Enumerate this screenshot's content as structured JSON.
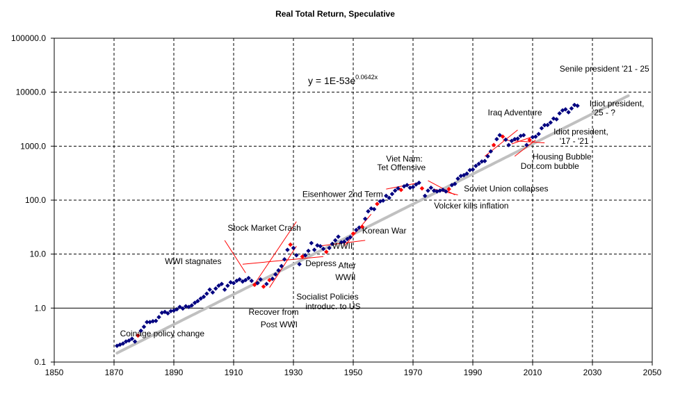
{
  "chart_data": {
    "type": "scatter",
    "title": "Real Total Return,  Speculative",
    "xlabel": "",
    "ylabel": "",
    "y_scale": "log",
    "xlim": [
      1850,
      2050
    ],
    "ylim": [
      0.1,
      100000
    ],
    "x_ticks": [
      "1850",
      "1870",
      "1890",
      "1910",
      "1930",
      "1950",
      "1970",
      "1990",
      "2010",
      "2030",
      "2050"
    ],
    "y_ticks": [
      "100000.0",
      "10000.0",
      "1000.0",
      "100.0",
      "10.0",
      "1.0",
      "0.1"
    ],
    "trendline": {
      "equation_prefix": "y = 1E-53e",
      "equation_exponent": "0.0642x",
      "coef": 1e-53,
      "rate": 0.0642,
      "x_range": [
        1871,
        2042
      ],
      "color": "#c0c0c0"
    },
    "series": [
      {
        "name": "Real Total Return",
        "marker": "diamond",
        "color": "#000080",
        "x": [
          1871,
          1872,
          1873,
          1874,
          1875,
          1876,
          1877,
          1878,
          1879,
          1880,
          1881,
          1882,
          1883,
          1884,
          1885,
          1886,
          1887,
          1888,
          1889,
          1890,
          1891,
          1892,
          1893,
          1894,
          1895,
          1896,
          1897,
          1898,
          1899,
          1900,
          1901,
          1902,
          1903,
          1904,
          1905,
          1906,
          1907,
          1908,
          1909,
          1910,
          1911,
          1912,
          1913,
          1914,
          1915,
          1916,
          1917,
          1918,
          1919,
          1920,
          1921,
          1922,
          1923,
          1924,
          1925,
          1926,
          1927,
          1928,
          1929,
          1930,
          1931,
          1932,
          1933,
          1934,
          1935,
          1936,
          1937,
          1938,
          1939,
          1940,
          1941,
          1942,
          1943,
          1944,
          1945,
          1946,
          1947,
          1948,
          1949,
          1950,
          1951,
          1952,
          1953,
          1954,
          1955,
          1956,
          1957,
          1958,
          1959,
          1960,
          1961,
          1962,
          1963,
          1964,
          1965,
          1966,
          1967,
          1968,
          1969,
          1970,
          1971,
          1972,
          1973,
          1974,
          1975,
          1976,
          1977,
          1978,
          1979,
          1980,
          1981,
          1982,
          1983,
          1984,
          1985,
          1986,
          1987,
          1988,
          1989,
          1990,
          1991,
          1992,
          1993,
          1994,
          1995,
          1996,
          1997,
          1998,
          1999,
          2000,
          2001,
          2002,
          2003,
          2004,
          2005,
          2006,
          2007,
          2008,
          2009,
          2010,
          2011,
          2012,
          2013,
          2014,
          2015,
          2016,
          2017,
          2018,
          2019,
          2020,
          2021,
          2022,
          2023,
          2024,
          2025
        ],
        "values": [
          0.2,
          0.21,
          0.22,
          0.24,
          0.25,
          0.27,
          0.24,
          0.31,
          0.38,
          0.45,
          0.55,
          0.55,
          0.57,
          0.58,
          0.68,
          0.82,
          0.85,
          0.8,
          0.88,
          0.9,
          0.95,
          1.05,
          0.98,
          1.08,
          1.05,
          1.12,
          1.25,
          1.35,
          1.5,
          1.62,
          1.85,
          2.2,
          1.95,
          2.3,
          2.6,
          2.8,
          2.2,
          2.6,
          3.0,
          2.9,
          3.2,
          3.4,
          3.1,
          3.3,
          3.6,
          3.2,
          2.7,
          2.9,
          3.4,
          2.5,
          2.8,
          3.3,
          3.5,
          4.2,
          5.0,
          6.0,
          8.0,
          12.0,
          15.0,
          13.0,
          9.5,
          6.5,
          9.0,
          9.5,
          11.5,
          16.0,
          12.0,
          14.5,
          14.0,
          12.5,
          11.0,
          13.0,
          15.5,
          18.0,
          21.0,
          16.5,
          17.0,
          19.0,
          20.5,
          24.0,
          28.0,
          31.0,
          32.0,
          45.0,
          62.0,
          70.0,
          68.0,
          85.0,
          95.0,
          98.0,
          120.0,
          110.0,
          130.0,
          150.0,
          165.0,
          155.0,
          180.0,
          190.0,
          170.0,
          175.0,
          195.0,
          210.0,
          165.0,
          120.0,
          150.0,
          170.0,
          150.0,
          145.0,
          150.0,
          155.0,
          145.0,
          160.0,
          190.0,
          200.0,
          250.0,
          280.0,
          290.0,
          310.0,
          360.0,
          370.0,
          430.0,
          470.0,
          520.0,
          530.0,
          650.0,
          800.0,
          1050.0,
          1350.0,
          1600.0,
          1500.0,
          1320.0,
          1050.0,
          1250.0,
          1350.0,
          1380.0,
          1550.0,
          1600.0,
          1050.0,
          1300.0,
          1470.0,
          1500.0,
          1680.0,
          2150.0,
          2450.0,
          2470.0,
          2740.0,
          3250.0,
          3150.0,
          4050.0,
          4600.0,
          4800.0,
          4250.0,
          5000.0,
          5800.0,
          5600.0
        ],
        "highlight_color": "#ff0000",
        "highlight_x": [
          1878,
          1917,
          1920,
          1922,
          1929,
          1933,
          1941,
          1950,
          1953,
          1958,
          1966,
          1973,
          1982,
          1997,
          2000,
          2009
        ]
      }
    ],
    "annotations": [
      {
        "text": "Coinage  policy change",
        "x": 1872,
        "y": 0.3
      },
      {
        "text": "WWI stagnates",
        "x": 1887,
        "y": 6.5
      },
      {
        "text": "Stock Market Crash",
        "x": 1908,
        "y": 27
      },
      {
        "text": "Recover  from",
        "x": 1915,
        "y": 0.75
      },
      {
        "text": "Post WWI",
        "x": 1919,
        "y": 0.44
      },
      {
        "text": "Depress",
        "x": 1934,
        "y": 6.0
      },
      {
        "text": "After",
        "x": 1945,
        "y": 5.5
      },
      {
        "text": "WWII",
        "x": 1944,
        "y": 3.3
      },
      {
        "text": "WWII",
        "x": 1943,
        "y": 12.5
      },
      {
        "text": "Socialist Policies",
        "x": 1931,
        "y": 1.45
      },
      {
        "text": "introduc. to US",
        "x": 1934,
        "y": 0.95
      },
      {
        "text": "Korean  War",
        "x": 1953,
        "y": 24
      },
      {
        "text": "Eisenhower 2nd Term",
        "x": 1933,
        "y": 115
      },
      {
        "text": "Viet Nam:",
        "x": 1961,
        "y": 520
      },
      {
        "text": "Tet Offensive",
        "x": 1958,
        "y": 360
      },
      {
        "text": "Volcker kills inflation",
        "x": 1977,
        "y": 70
      },
      {
        "text": "Soviet Union collapses",
        "x": 1987,
        "y": 145
      },
      {
        "text": "Iraq  Adventure",
        "x": 1995,
        "y": 3700
      },
      {
        "text": "Housing  Bubble",
        "x": 2010,
        "y": 570
      },
      {
        "text": "Dot.com  bubble",
        "x": 2006,
        "y": 380
      },
      {
        "text": "Idiot president,",
        "x": 2017,
        "y": 1650
      },
      {
        "text": "'17 - '21",
        "x": 2019,
        "y": 1100
      },
      {
        "text": "Idiot president,",
        "x": 2029,
        "y": 5500
      },
      {
        "text": "'25 - ?",
        "x": 2030,
        "y": 3700
      },
      {
        "text": "Senile president '21 - 25",
        "x": 2019,
        "y": 24000
      }
    ],
    "red_segments": [
      {
        "x1": 1907,
        "y1": 18,
        "x2": 1914,
        "y2": 4.5
      },
      {
        "x1": 1917,
        "y1": 2.8,
        "x2": 1931,
        "y2": 40
      },
      {
        "x1": 1913,
        "y1": 6.5,
        "x2": 1940,
        "y2": 9.0
      },
      {
        "x1": 1922,
        "y1": 2.4,
        "x2": 1931,
        "y2": 14
      },
      {
        "x1": 1938,
        "y1": 14,
        "x2": 1954,
        "y2": 18
      },
      {
        "x1": 1947,
        "y1": 14,
        "x2": 1956,
        "y2": 55
      },
      {
        "x1": 1961,
        "y1": 160,
        "x2": 1972,
        "y2": 210
      },
      {
        "x1": 1975,
        "y1": 230,
        "x2": 1984,
        "y2": 125
      },
      {
        "x1": 1977,
        "y1": 160,
        "x2": 1985,
        "y2": 125
      },
      {
        "x1": 1994,
        "y1": 650,
        "x2": 2005,
        "y2": 2000
      },
      {
        "x1": 2000,
        "y1": 1300,
        "x2": 2014,
        "y2": 1150
      },
      {
        "x1": 2004,
        "y1": 650,
        "x2": 2011,
        "y2": 1300
      },
      {
        "x1": 2003,
        "y1": 1100,
        "x2": 2010,
        "y2": 1500
      }
    ]
  }
}
